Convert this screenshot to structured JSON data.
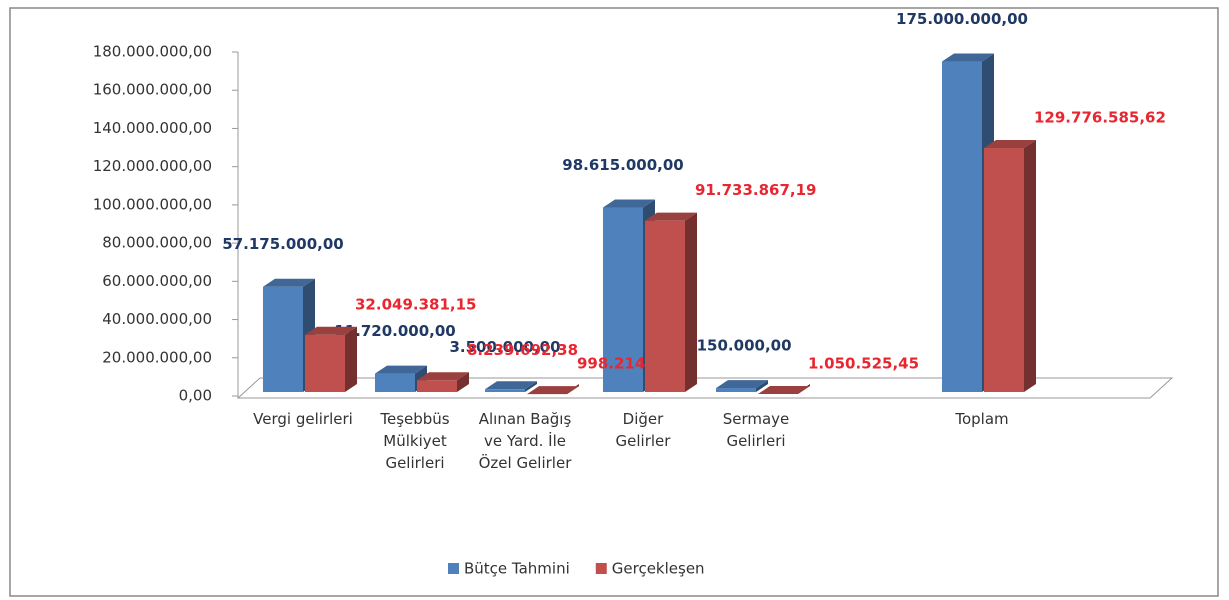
{
  "chart_data": {
    "type": "bar3d",
    "categories": [
      "Vergi gelirleri",
      "Teşebbüs Mülkiyet Gelirleri",
      "Alınan Bağış ve Yard. İle Özel Gelirler",
      "Diğer Gelirler",
      "Sermaye Gelirleri",
      "Toplam"
    ],
    "series": [
      {
        "name": "Bütçe Tahmini",
        "color": "#4f81bd",
        "label_color": "#1f3864",
        "values": [
          57175000,
          11720000,
          3500000,
          98615000,
          4150000,
          175000000
        ],
        "value_labels": [
          "57.175.000,00",
          "11.720.000,00",
          "3.500.000,00",
          "98.615.000,00",
          "4.150.000,00",
          "175.000.000,00"
        ]
      },
      {
        "name": "Gerçekleşen",
        "color": "#c0504d",
        "label_color": "#e8262f",
        "values": [
          32049381.15,
          8239692.38,
          998214,
          91733867.19,
          1050525.45,
          129776585.62
        ],
        "value_labels": [
          "32.049.381,15",
          "8.239.692,38",
          "998.214,00",
          "91.733.867,19",
          "1.050.525,45",
          "129.776.585,62"
        ]
      }
    ],
    "ylim": [
      0,
      180000000
    ],
    "yticks": [
      {
        "value": 0,
        "label": "0,00"
      },
      {
        "value": 20000000,
        "label": "20.000.000,00"
      },
      {
        "value": 40000000,
        "label": "40.000.000,00"
      },
      {
        "value": 60000000,
        "label": "60.000.000,00"
      },
      {
        "value": 80000000,
        "label": "80.000.000,00"
      },
      {
        "value": 100000000,
        "label": "100.000.000,00"
      },
      {
        "value": 120000000,
        "label": "120.000.000,00"
      },
      {
        "value": 140000000,
        "label": "140.000.000,00"
      },
      {
        "value": 160000000,
        "label": "160.000.000,00"
      },
      {
        "value": 180000000,
        "label": "180.000.000,00"
      }
    ],
    "legend": "bottom"
  }
}
